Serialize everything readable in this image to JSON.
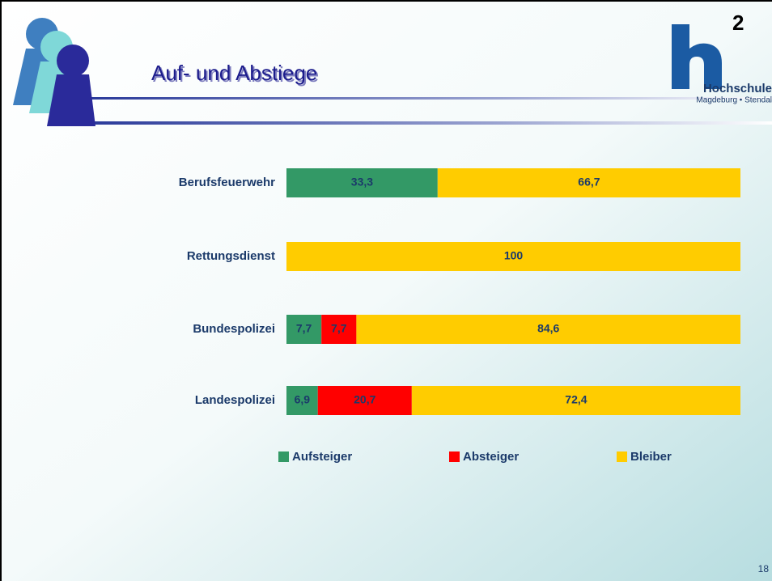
{
  "slide": {
    "logo_mark": "2",
    "logo_name": "Hochschule",
    "logo_place": "Magdeburg • Stendal",
    "page_number": "18"
  },
  "chart_data": {
    "type": "stacked-bar-horizontal",
    "title": "Auf- und Abstiege",
    "categories": [
      "Berufsfeuerwehr",
      "Rettungsdienst",
      "Bundespolizei",
      "Landespolizei"
    ],
    "xlim": [
      0,
      100
    ],
    "series": [
      {
        "name": "Aufsteiger",
        "color": "#339966",
        "values": [
          33.3,
          null,
          7.7,
          6.9
        ],
        "value_labels": [
          "33,3",
          null,
          "7,7",
          "6,9"
        ]
      },
      {
        "name": "Absteiger",
        "color": "#ff0000",
        "values": [
          null,
          null,
          7.7,
          20.7
        ],
        "value_labels": [
          null,
          null,
          "7,7",
          "20,7"
        ]
      },
      {
        "name": "Bleiber",
        "color": "#ffcc00",
        "values": [
          66.7,
          100,
          84.6,
          72.4
        ],
        "value_labels": [
          "66,7",
          "100",
          "84,6",
          "72,4"
        ]
      }
    ],
    "legend": "bottom"
  }
}
